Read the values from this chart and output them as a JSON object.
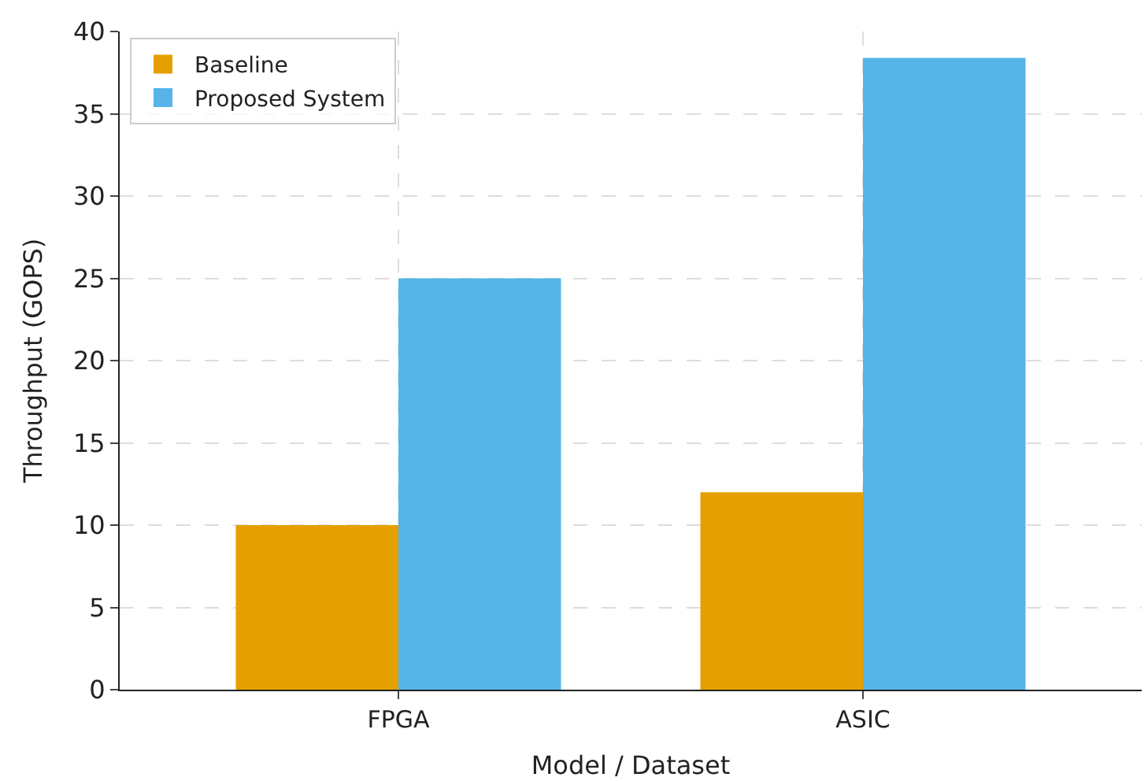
{
  "chart_data": {
    "type": "bar",
    "xlabel": "Model / Dataset",
    "ylabel": "Throughput (GOPS)",
    "categories": [
      "FPGA",
      "ASIC"
    ],
    "series": [
      {
        "name": "Baseline",
        "color": "#e69f00",
        "values": [
          10,
          12
        ]
      },
      {
        "name": "Proposed System",
        "color": "#56b4e9",
        "values": [
          25,
          38.4
        ]
      }
    ],
    "ylim": [
      0,
      40
    ],
    "yticks": [
      0,
      5,
      10,
      15,
      20,
      25,
      30,
      35,
      40
    ],
    "grid": true,
    "legend": "top left"
  }
}
